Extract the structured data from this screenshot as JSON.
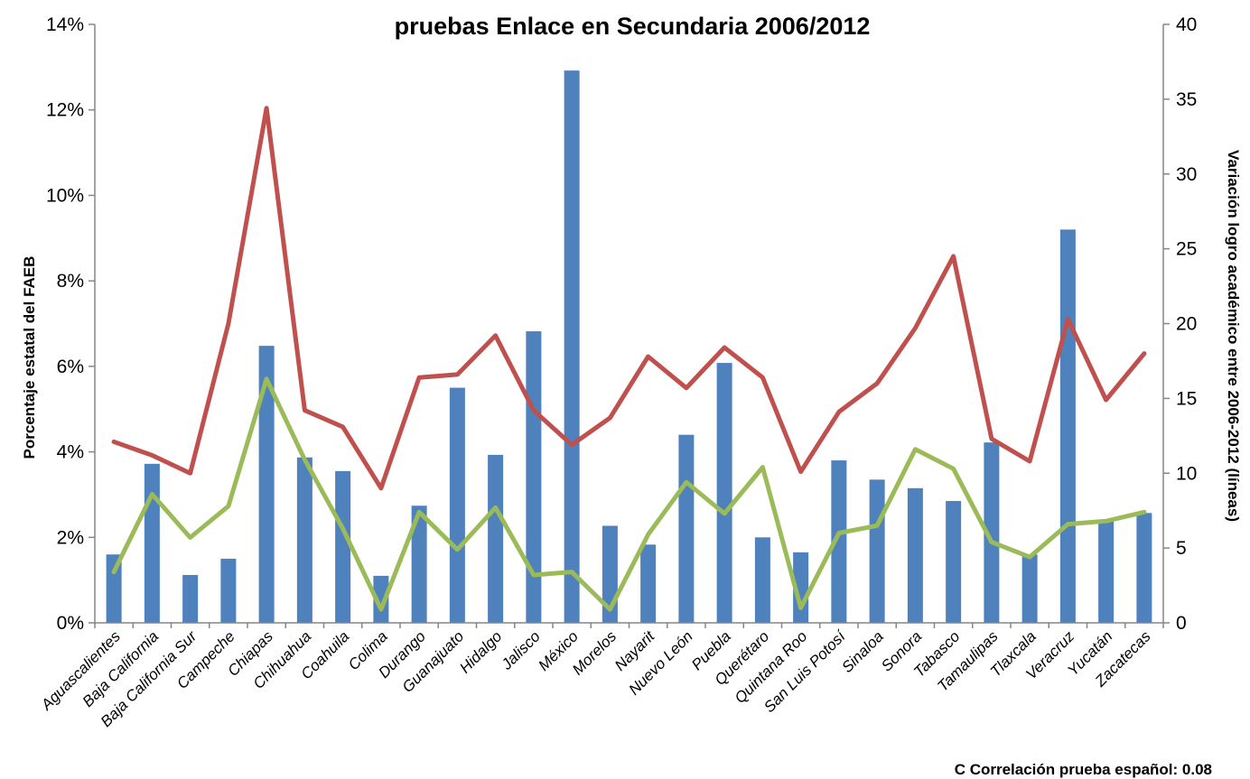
{
  "chart_data": {
    "type": "bar",
    "title": "pruebas Enlace en Secundaria 2006/2012",
    "ylabel": "Porcentaje estatal del FAEB",
    "y2label": "Variación logro académico entre 2006-2012  (líneas)",
    "ylim": [
      0,
      14
    ],
    "y2lim": [
      0,
      40
    ],
    "yticks": [
      "0%",
      "2%",
      "4%",
      "6%",
      "8%",
      "10%",
      "12%",
      "14%"
    ],
    "y2ticks": [
      "0",
      "5",
      "10",
      "15",
      "20",
      "25",
      "30",
      "35",
      "40"
    ],
    "grid": false,
    "categories": [
      "Aguascalientes",
      "Baja California",
      "Baja California Sur",
      "Campeche",
      "Chiapas",
      "Chihuahua",
      "Coahuila",
      "Colima",
      "Durango",
      "Guanajuato",
      "Hidalgo",
      "Jalisco",
      "México",
      "Morelos",
      "Nayarit",
      "Nuevo León",
      "Puebla",
      "Querétaro",
      "Quintana Roo",
      "San Luis Potosí",
      "Sinaloa",
      "Sonora",
      "Tabasco",
      "Tamaulipas",
      "Tlaxcala",
      "Veracruz",
      "Yucatán",
      "Zacatecas"
    ],
    "series": [
      {
        "kind": "bar",
        "axis": "left",
        "color": "#4F81BD",
        "values": [
          1.6,
          3.72,
          1.12,
          1.5,
          6.48,
          3.87,
          3.55,
          1.1,
          2.74,
          5.5,
          3.93,
          6.82,
          12.92,
          2.27,
          1.83,
          4.4,
          6.08,
          2.0,
          1.65,
          3.8,
          3.35,
          3.15,
          2.85,
          4.22,
          1.6,
          9.2,
          2.4,
          2.57
        ]
      },
      {
        "kind": "line",
        "axis": "right",
        "color": "#C0504D",
        "values": [
          12.1,
          11.2,
          10.0,
          20.0,
          34.4,
          14.2,
          13.1,
          9.0,
          16.4,
          16.6,
          19.2,
          14.2,
          11.9,
          13.7,
          17.8,
          15.7,
          18.4,
          16.4,
          10.1,
          14.1,
          16.0,
          19.7,
          24.5,
          12.3,
          10.8,
          20.3,
          14.9,
          18.0
        ]
      },
      {
        "kind": "line",
        "axis": "right",
        "color": "#9BBB59",
        "values": [
          3.4,
          8.6,
          5.7,
          7.8,
          16.3,
          10.9,
          6.3,
          0.9,
          7.4,
          4.9,
          7.7,
          3.2,
          3.4,
          0.9,
          5.9,
          9.4,
          7.3,
          10.4,
          1.0,
          6.0,
          6.5,
          11.6,
          10.3,
          5.4,
          4.4,
          6.6,
          6.8,
          7.4
        ]
      }
    ],
    "annotation": "C  Correlación prueba español: 0.08"
  }
}
